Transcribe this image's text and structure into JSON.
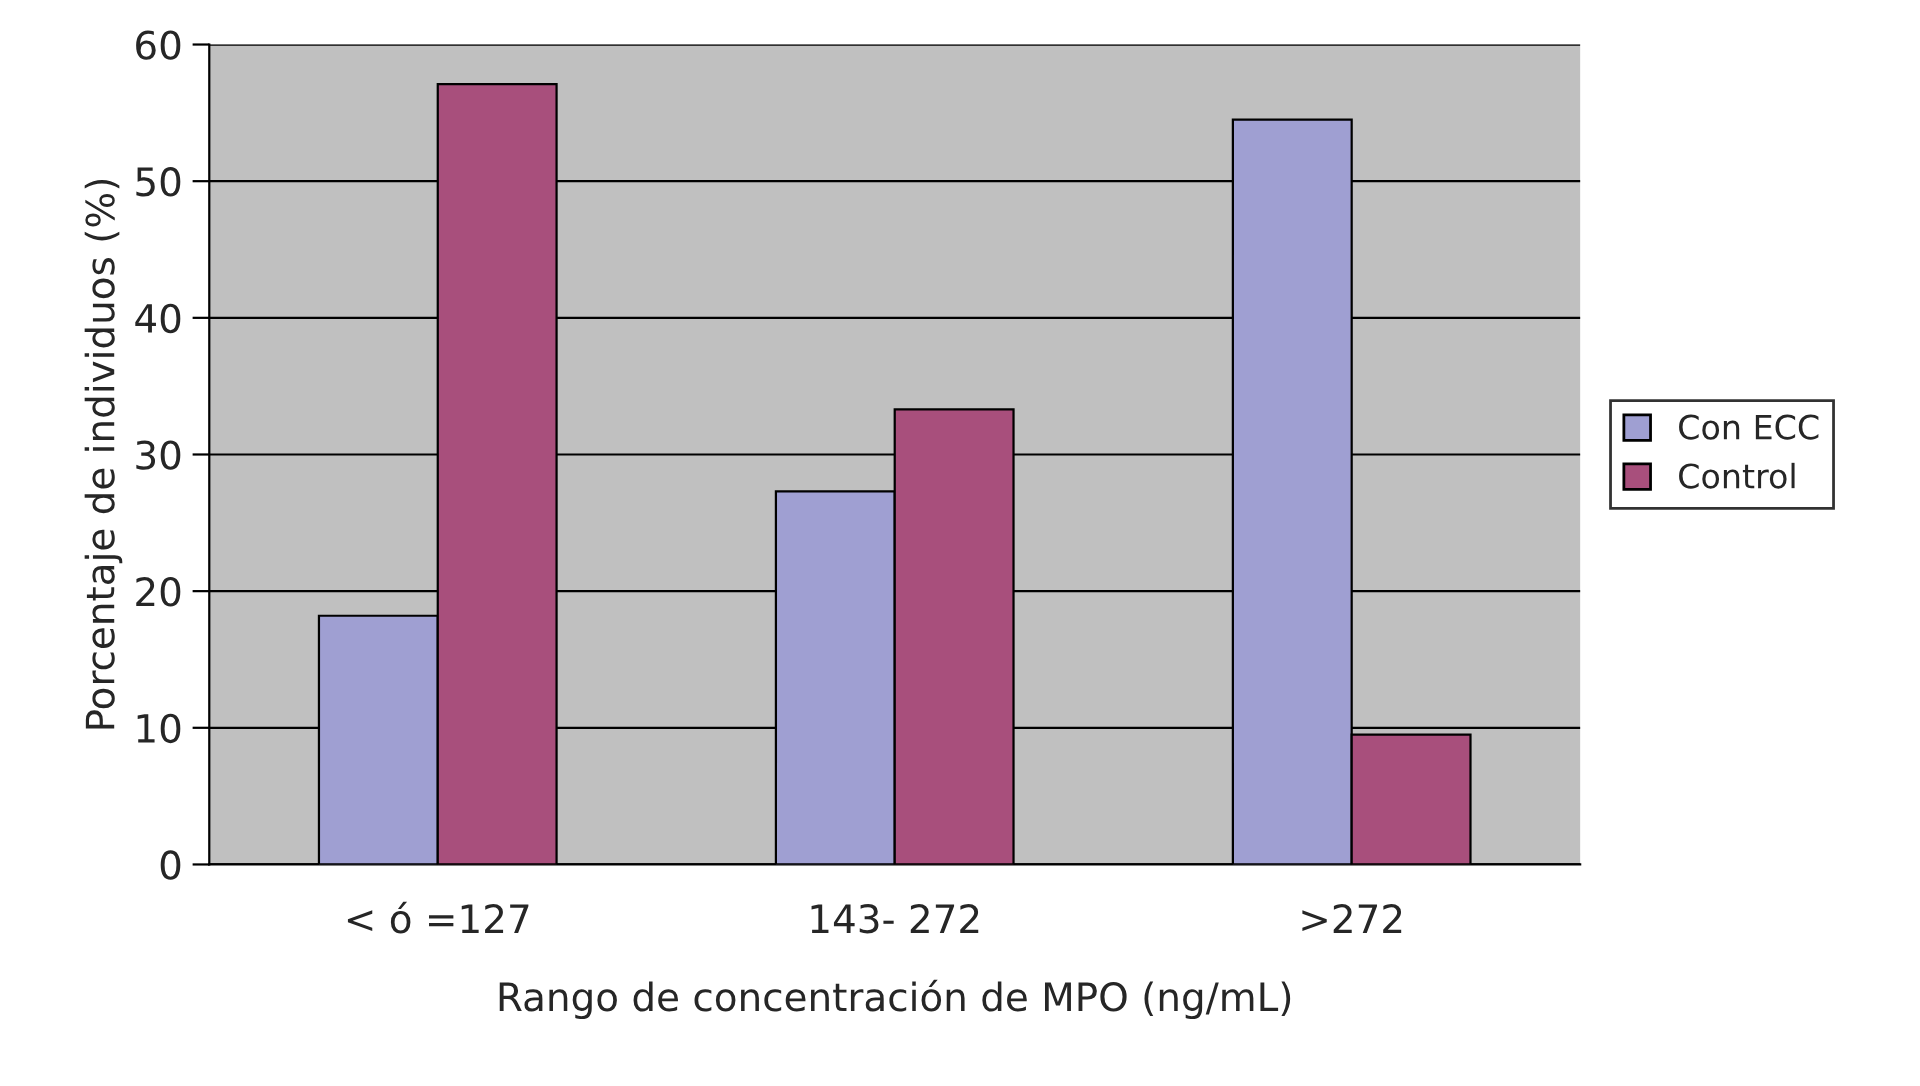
{
  "chart_data": {
    "type": "bar",
    "xlabel": "Rango de concentración de MPO (ng/mL)",
    "ylabel": "Porcentaje de individuos (%)",
    "categories": [
      "< ó =127",
      "143- 272",
      ">272"
    ],
    "series": [
      {
        "name": "Con ECC",
        "color": "#9f9fd2",
        "values": [
          18.2,
          27.3,
          54.5
        ]
      },
      {
        "name": "Control",
        "color": "#a84f7c",
        "values": [
          57.1,
          33.3,
          9.5
        ]
      }
    ],
    "ylim": [
      0,
      60
    ],
    "yticks": [
      0,
      10,
      20,
      30,
      40,
      50,
      60
    ],
    "grid": "y",
    "legend": "right"
  }
}
